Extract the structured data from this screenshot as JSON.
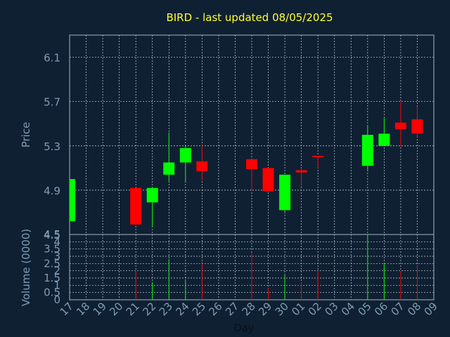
{
  "chart_data": {
    "type": "candlestick",
    "title": "BIRD - last updated 08/05/2025",
    "xlabel": "Day",
    "ylabel_price": "Price",
    "ylabel_volume": "Volume (0000)",
    "x_ticks": [
      "17",
      "18",
      "19",
      "20",
      "21",
      "22",
      "23",
      "24",
      "25",
      "26",
      "27",
      "28",
      "29",
      "30",
      "01",
      "02",
      "03",
      "04",
      "05",
      "06",
      "07",
      "08",
      "09"
    ],
    "price_ticks": [
      "6.1",
      "5.7",
      "5.3",
      "4.9",
      "4.5"
    ],
    "price_ylim": [
      4.5,
      6.3
    ],
    "volume_ticks": [
      "4",
      "3.5",
      "3",
      "2.5",
      "2",
      "1.5",
      "1",
      "0.5",
      "0"
    ],
    "volume_axis_top_label": "4.5",
    "volume_ylim": [
      0,
      4.5
    ],
    "grid": true,
    "candles": [
      {
        "day": "17",
        "open": 4.62,
        "high": 5.0,
        "low": 4.62,
        "close": 5.0,
        "volume": 0
      },
      {
        "day": "21",
        "open": 4.92,
        "high": 4.92,
        "low": 4.59,
        "close": 4.59,
        "volume": 2.0
      },
      {
        "day": "22",
        "open": 4.79,
        "high": 4.92,
        "low": 4.57,
        "close": 4.92,
        "volume": 1.2
      },
      {
        "day": "23",
        "open": 5.04,
        "high": 5.42,
        "low": 4.98,
        "close": 5.15,
        "volume": 2.8
      },
      {
        "day": "24",
        "open": 5.15,
        "high": 5.3,
        "low": 4.97,
        "close": 5.28,
        "volume": 1.3
      },
      {
        "day": "25",
        "open": 5.16,
        "high": 5.31,
        "low": 4.99,
        "close": 5.07,
        "volume": 2.5
      },
      {
        "day": "28",
        "open": 5.18,
        "high": 5.18,
        "low": 4.89,
        "close": 5.09,
        "volume": 3.2
      },
      {
        "day": "29",
        "open": 5.1,
        "high": 5.1,
        "low": 4.89,
        "close": 4.89,
        "volume": 0.8
      },
      {
        "day": "30",
        "open": 4.72,
        "high": 5.04,
        "low": 4.7,
        "close": 5.04,
        "volume": 1.7
      },
      {
        "day": "01",
        "open": 5.08,
        "high": 5.1,
        "low": 4.93,
        "close": 5.06,
        "volume": 1.2
      },
      {
        "day": "02",
        "open": 5.21,
        "high": 5.21,
        "low": 5.1,
        "close": 5.2,
        "volume": 2.0
      },
      {
        "day": "05",
        "open": 5.12,
        "high": 5.48,
        "low": 5.07,
        "close": 5.4,
        "volume": 4.5
      },
      {
        "day": "06",
        "open": 5.3,
        "high": 5.55,
        "low": 5.3,
        "close": 5.41,
        "volume": 2.5
      },
      {
        "day": "07",
        "open": 5.51,
        "high": 5.7,
        "low": 5.29,
        "close": 5.45,
        "volume": 2.0
      },
      {
        "day": "08",
        "open": 5.54,
        "high": 5.65,
        "low": 5.38,
        "close": 5.41,
        "volume": 2.4
      }
    ],
    "colors": {
      "background": "#0f2033",
      "plot_border": "#a9b4c0",
      "grid": "#c8d0d8",
      "title": "#ffff33",
      "axis_text": "#7f9cb4",
      "up": "#00ff00",
      "down": "#ff0000"
    }
  }
}
